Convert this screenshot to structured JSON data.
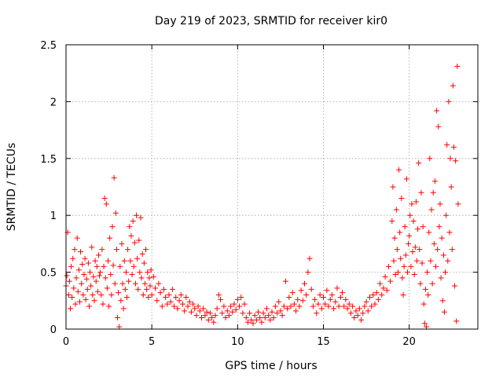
{
  "chart_data": {
    "type": "scatter",
    "title": "Day 219 of 2023, SRMTID for receiver kir0",
    "xlabel": "GPS time / hours",
    "ylabel": "SRMTID / TECUs",
    "xlim": [
      0,
      24
    ],
    "ylim": [
      0,
      2.5
    ],
    "x_ticks": [
      0,
      5,
      10,
      15,
      20
    ],
    "x_tick_labels": [
      "0",
      "5",
      "10",
      "15",
      "20"
    ],
    "y_ticks": [
      0,
      0.5,
      1,
      1.5,
      2,
      2.5
    ],
    "y_tick_labels": [
      "0",
      "0.5",
      "1",
      "1.5",
      "2",
      "2.5"
    ],
    "grid": true,
    "marker": "+",
    "series": [
      {
        "name": "kir0",
        "color": "#ff0000",
        "points": [
          [
            0.0,
            0.38
          ],
          [
            0.05,
            0.47
          ],
          [
            0.1,
            0.85
          ],
          [
            0.15,
            0.3
          ],
          [
            0.2,
            0.42
          ],
          [
            0.25,
            0.18
          ],
          [
            0.3,
            0.55
          ],
          [
            0.35,
            0.28
          ],
          [
            0.4,
            0.62
          ],
          [
            0.45,
            0.36
          ],
          [
            0.5,
            0.7
          ],
          [
            0.55,
            0.22
          ],
          [
            0.6,
            0.45
          ],
          [
            0.65,
            0.8
          ],
          [
            0.7,
            0.33
          ],
          [
            0.75,
            0.52
          ],
          [
            0.8,
            0.24
          ],
          [
            0.85,
            0.68
          ],
          [
            0.9,
            0.4
          ],
          [
            0.95,
            0.57
          ],
          [
            1.0,
            0.3
          ],
          [
            1.05,
            0.48
          ],
          [
            1.1,
            0.62
          ],
          [
            1.15,
            0.26
          ],
          [
            1.2,
            0.44
          ],
          [
            1.25,
            0.35
          ],
          [
            1.3,
            0.58
          ],
          [
            1.35,
            0.2
          ],
          [
            1.4,
            0.5
          ],
          [
            1.45,
            0.38
          ],
          [
            1.5,
            0.72
          ],
          [
            1.55,
            0.3
          ],
          [
            1.6,
            0.46
          ],
          [
            1.65,
            0.25
          ],
          [
            1.7,
            0.6
          ],
          [
            1.75,
            0.42
          ],
          [
            1.8,
            0.55
          ],
          [
            1.85,
            0.33
          ],
          [
            1.9,
            0.65
          ],
          [
            1.95,
            0.47
          ],
          [
            2.0,
            0.5
          ],
          [
            2.05,
            0.3
          ],
          [
            2.1,
            0.7
          ],
          [
            2.15,
            0.22
          ],
          [
            2.2,
            0.55
          ],
          [
            2.25,
            1.15
          ],
          [
            2.3,
            0.45
          ],
          [
            2.35,
            1.1
          ],
          [
            2.4,
            0.36
          ],
          [
            2.45,
            0.6
          ],
          [
            2.5,
            0.2
          ],
          [
            2.55,
            0.8
          ],
          [
            2.6,
            0.48
          ],
          [
            2.65,
            0.3
          ],
          [
            2.7,
            0.9
          ],
          [
            2.75,
            0.56
          ],
          [
            2.8,
            1.33
          ],
          [
            2.85,
            0.4
          ],
          [
            2.9,
            1.02
          ],
          [
            2.95,
            0.7
          ],
          [
            3.0,
            0.1
          ],
          [
            3.05,
            0.32
          ],
          [
            3.1,
            0.02
          ],
          [
            3.15,
            0.55
          ],
          [
            3.2,
            0.25
          ],
          [
            3.25,
            0.75
          ],
          [
            3.3,
            0.4
          ],
          [
            3.35,
            0.18
          ],
          [
            3.4,
            0.6
          ],
          [
            3.45,
            0.35
          ],
          [
            3.5,
            0.5
          ],
          [
            3.55,
            0.28
          ],
          [
            3.6,
            0.7
          ],
          [
            3.65,
            0.42
          ],
          [
            3.7,
            0.9
          ],
          [
            3.75,
            0.6
          ],
          [
            3.8,
            0.82
          ],
          [
            3.85,
            0.48
          ],
          [
            3.9,
            0.95
          ],
          [
            3.95,
            0.55
          ],
          [
            4.0,
            0.76
          ],
          [
            4.05,
            0.4
          ],
          [
            4.1,
            1.0
          ],
          [
            4.15,
            0.62
          ],
          [
            4.2,
            0.35
          ],
          [
            4.25,
            0.78
          ],
          [
            4.3,
            0.5
          ],
          [
            4.35,
            0.98
          ],
          [
            4.4,
            0.45
          ],
          [
            4.45,
            0.66
          ],
          [
            4.5,
            0.3
          ],
          [
            4.55,
            0.58
          ],
          [
            4.6,
            0.4
          ],
          [
            4.65,
            0.7
          ],
          [
            4.7,
            0.35
          ],
          [
            4.75,
            0.5
          ],
          [
            4.8,
            0.28
          ],
          [
            4.85,
            0.45
          ],
          [
            4.9,
            0.38
          ],
          [
            4.95,
            0.52
          ],
          [
            5.0,
            0.3
          ],
          [
            5.1,
            0.46
          ],
          [
            5.2,
            0.36
          ],
          [
            5.3,
            0.25
          ],
          [
            5.4,
            0.4
          ],
          [
            5.5,
            0.32
          ],
          [
            5.6,
            0.2
          ],
          [
            5.7,
            0.35
          ],
          [
            5.8,
            0.28
          ],
          [
            5.9,
            0.22
          ],
          [
            6.0,
            0.3
          ],
          [
            6.1,
            0.24
          ],
          [
            6.2,
            0.35
          ],
          [
            6.3,
            0.2
          ],
          [
            6.4,
            0.28
          ],
          [
            6.5,
            0.18
          ],
          [
            6.6,
            0.25
          ],
          [
            6.7,
            0.3
          ],
          [
            6.8,
            0.22
          ],
          [
            6.9,
            0.16
          ],
          [
            7.0,
            0.28
          ],
          [
            7.1,
            0.2
          ],
          [
            7.2,
            0.24
          ],
          [
            7.3,
            0.15
          ],
          [
            7.4,
            0.22
          ],
          [
            7.5,
            0.18
          ],
          [
            7.6,
            0.12
          ],
          [
            7.7,
            0.2
          ],
          [
            7.8,
            0.16
          ],
          [
            7.9,
            0.1
          ],
          [
            8.0,
            0.18
          ],
          [
            8.1,
            0.12
          ],
          [
            8.2,
            0.15
          ],
          [
            8.3,
            0.08
          ],
          [
            8.4,
            0.14
          ],
          [
            8.5,
            0.1
          ],
          [
            8.6,
            0.06
          ],
          [
            8.7,
            0.12
          ],
          [
            8.8,
            0.18
          ],
          [
            8.9,
            0.3
          ],
          [
            9.0,
            0.26
          ],
          [
            9.1,
            0.14
          ],
          [
            9.2,
            0.2
          ],
          [
            9.3,
            0.1
          ],
          [
            9.4,
            0.16
          ],
          [
            9.5,
            0.12
          ],
          [
            9.6,
            0.2
          ],
          [
            9.7,
            0.15
          ],
          [
            9.8,
            0.22
          ],
          [
            9.9,
            0.17
          ],
          [
            10.0,
            0.26
          ],
          [
            10.1,
            0.2
          ],
          [
            10.2,
            0.28
          ],
          [
            10.3,
            0.14
          ],
          [
            10.4,
            0.22
          ],
          [
            10.5,
            0.1
          ],
          [
            10.6,
            0.06
          ],
          [
            10.7,
            0.14
          ],
          [
            10.8,
            0.08
          ],
          [
            10.9,
            0.05
          ],
          [
            11.0,
            0.12
          ],
          [
            11.1,
            0.08
          ],
          [
            11.2,
            0.15
          ],
          [
            11.3,
            0.1
          ],
          [
            11.4,
            0.06
          ],
          [
            11.5,
            0.14
          ],
          [
            11.6,
            0.1
          ],
          [
            11.7,
            0.18
          ],
          [
            11.8,
            0.12
          ],
          [
            11.9,
            0.08
          ],
          [
            12.0,
            0.15
          ],
          [
            12.1,
            0.1
          ],
          [
            12.2,
            0.2
          ],
          [
            12.3,
            0.14
          ],
          [
            12.4,
            0.24
          ],
          [
            12.5,
            0.16
          ],
          [
            12.6,
            0.12
          ],
          [
            12.7,
            0.2
          ],
          [
            12.8,
            0.42
          ],
          [
            12.9,
            0.18
          ],
          [
            13.0,
            0.28
          ],
          [
            13.1,
            0.2
          ],
          [
            13.2,
            0.32
          ],
          [
            13.3,
            0.22
          ],
          [
            13.4,
            0.16
          ],
          [
            13.5,
            0.26
          ],
          [
            13.6,
            0.2
          ],
          [
            13.7,
            0.34
          ],
          [
            13.8,
            0.25
          ],
          [
            13.9,
            0.4
          ],
          [
            14.0,
            0.3
          ],
          [
            14.1,
            0.5
          ],
          [
            14.2,
            0.62
          ],
          [
            14.3,
            0.35
          ],
          [
            14.4,
            0.2
          ],
          [
            14.5,
            0.26
          ],
          [
            14.6,
            0.14
          ],
          [
            14.7,
            0.22
          ],
          [
            14.8,
            0.3
          ],
          [
            14.9,
            0.18
          ],
          [
            15.0,
            0.28
          ],
          [
            15.1,
            0.22
          ],
          [
            15.2,
            0.34
          ],
          [
            15.3,
            0.2
          ],
          [
            15.4,
            0.26
          ],
          [
            15.5,
            0.3
          ],
          [
            15.6,
            0.18
          ],
          [
            15.7,
            0.24
          ],
          [
            15.8,
            0.36
          ],
          [
            15.9,
            0.2
          ],
          [
            16.0,
            0.28
          ],
          [
            16.1,
            0.32
          ],
          [
            16.2,
            0.2
          ],
          [
            16.3,
            0.26
          ],
          [
            16.4,
            0.18
          ],
          [
            16.5,
            0.22
          ],
          [
            16.6,
            0.14
          ],
          [
            16.7,
            0.2
          ],
          [
            16.8,
            0.1
          ],
          [
            16.9,
            0.16
          ],
          [
            17.0,
            0.12
          ],
          [
            17.1,
            0.18
          ],
          [
            17.2,
            0.08
          ],
          [
            17.3,
            0.14
          ],
          [
            17.4,
            0.2
          ],
          [
            17.5,
            0.24
          ],
          [
            17.6,
            0.16
          ],
          [
            17.7,
            0.28
          ],
          [
            17.8,
            0.2
          ],
          [
            17.9,
            0.3
          ],
          [
            18.0,
            0.22
          ],
          [
            18.1,
            0.32
          ],
          [
            18.2,
            0.26
          ],
          [
            18.3,
            0.4
          ],
          [
            18.4,
            0.3
          ],
          [
            18.5,
            0.36
          ],
          [
            18.6,
            0.46
          ],
          [
            18.7,
            0.34
          ],
          [
            18.8,
            0.55
          ],
          [
            18.9,
            0.42
          ],
          [
            19.0,
            0.95
          ],
          [
            19.05,
            1.25
          ],
          [
            19.1,
            0.6
          ],
          [
            19.15,
            0.8
          ],
          [
            19.2,
            0.48
          ],
          [
            19.25,
            1.05
          ],
          [
            19.3,
            0.7
          ],
          [
            19.35,
            0.5
          ],
          [
            19.4,
            1.4
          ],
          [
            19.45,
            0.85
          ],
          [
            19.5,
            0.62
          ],
          [
            19.55,
            1.15
          ],
          [
            19.6,
            0.45
          ],
          [
            19.65,
            0.3
          ],
          [
            19.7,
            0.55
          ],
          [
            19.75,
            0.9
          ],
          [
            19.8,
            0.65
          ],
          [
            19.85,
            1.32
          ],
          [
            19.9,
            0.5
          ],
          [
            19.95,
            0.75
          ],
          [
            20.0,
            0.82
          ],
          [
            20.05,
            1.0
          ],
          [
            20.1,
            0.55
          ],
          [
            20.15,
            1.1
          ],
          [
            20.2,
            0.68
          ],
          [
            20.25,
            0.95
          ],
          [
            20.3,
            0.48
          ],
          [
            20.35,
            0.72
          ],
          [
            20.4,
            1.12
          ],
          [
            20.45,
            0.6
          ],
          [
            20.5,
            0.88
          ],
          [
            20.55,
            1.46
          ],
          [
            20.6,
            0.7
          ],
          [
            20.65,
            0.4
          ],
          [
            20.7,
            1.2
          ],
          [
            20.75,
            0.58
          ],
          [
            20.8,
            0.9
          ],
          [
            20.85,
            0.22
          ],
          [
            20.9,
            0.05
          ],
          [
            20.95,
            0.35
          ],
          [
            21.0,
            0.02
          ],
          [
            21.05,
            0.5
          ],
          [
            21.1,
            0.3
          ],
          [
            21.15,
            0.85
          ],
          [
            21.2,
            1.5
          ],
          [
            21.25,
            0.6
          ],
          [
            21.3,
            1.05
          ],
          [
            21.35,
            0.4
          ],
          [
            21.4,
            1.2
          ],
          [
            21.45,
            0.75
          ],
          [
            21.5,
            1.3
          ],
          [
            21.55,
            0.55
          ],
          [
            21.6,
            1.92
          ],
          [
            21.65,
            0.7
          ],
          [
            21.7,
            1.78
          ],
          [
            21.75,
            0.9
          ],
          [
            21.8,
            1.1
          ],
          [
            21.85,
            0.45
          ],
          [
            21.9,
            0.8
          ],
          [
            21.95,
            0.25
          ],
          [
            22.0,
            0.65
          ],
          [
            22.05,
            0.15
          ],
          [
            22.1,
            0.5
          ],
          [
            22.15,
            1.0
          ],
          [
            22.2,
            1.62
          ],
          [
            22.25,
            0.6
          ],
          [
            22.3,
            2.0
          ],
          [
            22.35,
            0.85
          ],
          [
            22.4,
            1.5
          ],
          [
            22.45,
            1.25
          ],
          [
            22.5,
            0.7
          ],
          [
            22.55,
            2.14
          ],
          [
            22.6,
            1.6
          ],
          [
            22.65,
            0.38
          ],
          [
            22.7,
            1.48
          ],
          [
            22.75,
            0.07
          ],
          [
            22.8,
            2.31
          ],
          [
            22.85,
            1.1
          ]
        ]
      }
    ]
  }
}
